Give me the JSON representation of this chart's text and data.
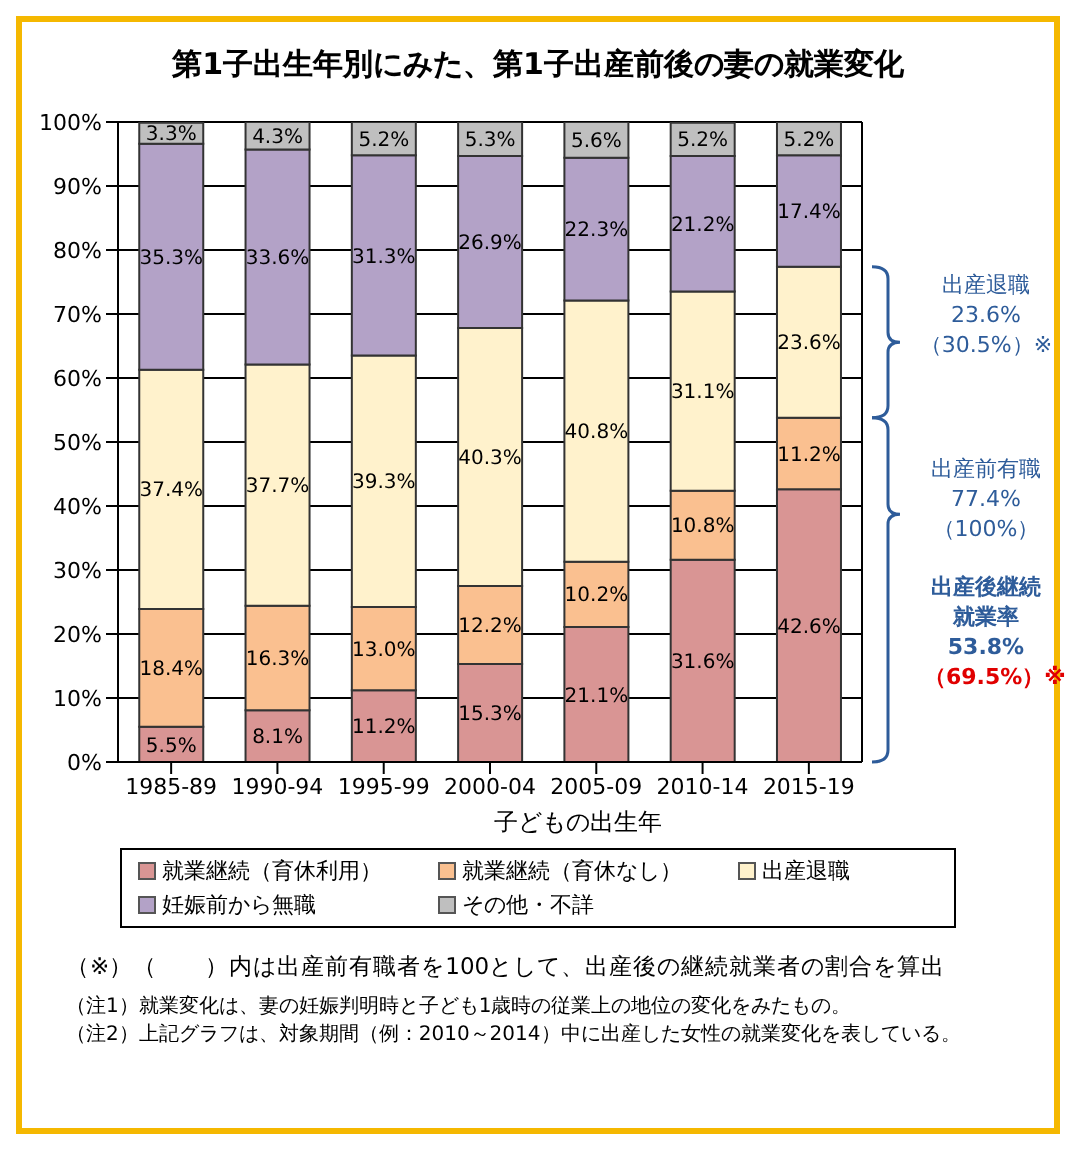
{
  "chart_data": {
    "type": "bar",
    "stacked": true,
    "title": "第1子出生年別にみた、第1子出産前後の妻の就業変化",
    "xlabel": "子どもの出生年",
    "categories": [
      "1985-89",
      "1990-94",
      "1995-99",
      "2000-04",
      "2005-09",
      "2010-14",
      "2015-19"
    ],
    "ylim": [
      0,
      100
    ],
    "yticks": [
      {
        "value": 0,
        "label": "0%"
      },
      {
        "value": 10,
        "label": "10%"
      },
      {
        "value": 20,
        "label": "20%"
      },
      {
        "value": 30,
        "label": "30%"
      },
      {
        "value": 40,
        "label": "40%"
      },
      {
        "value": 50,
        "label": "50%"
      },
      {
        "value": 60,
        "label": "60%"
      },
      {
        "value": 70,
        "label": "70%"
      },
      {
        "value": 80,
        "label": "80%"
      },
      {
        "value": 90,
        "label": "90%"
      },
      {
        "value": 100,
        "label": "100%"
      }
    ],
    "grid": "y",
    "legend": "bottom",
    "series": [
      {
        "name": "就業継続（育休利用）",
        "color": "#d99594",
        "values": [
          5.5,
          8.1,
          11.2,
          15.3,
          21.1,
          31.6,
          42.6
        ],
        "value_labels": [
          "5.5%",
          "8.1%",
          "11.2%",
          "15.3%",
          "21.1%",
          "31.6%",
          "42.6%"
        ]
      },
      {
        "name": "就業継続（育休なし）",
        "color": "#fac090",
        "values": [
          18.4,
          16.3,
          13.0,
          12.2,
          10.2,
          10.8,
          11.2
        ],
        "value_labels": [
          "18.4%",
          "16.3%",
          "13.0%",
          "12.2%",
          "10.2%",
          "10.8%",
          "11.2%"
        ]
      },
      {
        "name": "出産退職",
        "color": "#fff2cc",
        "values": [
          37.4,
          37.7,
          39.3,
          40.3,
          40.8,
          31.1,
          23.6
        ],
        "value_labels": [
          "37.4%",
          "37.7%",
          "39.3%",
          "40.3%",
          "40.8%",
          "31.1%",
          "23.6%"
        ]
      },
      {
        "name": "妊娠前から無職",
        "color": "#b3a2c7",
        "values": [
          35.3,
          33.6,
          31.3,
          26.9,
          22.3,
          21.2,
          17.4
        ],
        "value_labels": [
          "35.3%",
          "33.6%",
          "31.3%",
          "26.9%",
          "22.3%",
          "21.2%",
          "17.4%"
        ]
      },
      {
        "name": "その他・不詳",
        "color": "#bfbfbf",
        "values": [
          3.3,
          4.3,
          5.2,
          5.3,
          5.6,
          5.2,
          5.2
        ],
        "value_labels": [
          "3.3%",
          "4.3%",
          "5.2%",
          "5.3%",
          "5.6%",
          "5.2%",
          "5.2%"
        ]
      }
    ],
    "annotations": [
      "出産退職\n23.6%\n（30.5%）※",
      "出産前有職\n77.4%\n（100%）",
      "出産後継続就業率\n53.8%\n（69.5%）※",
      "（※）（　　）内は出産前有職者を100として、出産後の継続就業者の割合を算出",
      "（注1）就業変化は、妻の妊娠判明時と子ども1歳時の従業上の地位の変化をみたもの。",
      "（注2）上記グラフは、対象期間（例：2010～2014）中に出産した女性の就業変化を表している。"
    ]
  }
}
